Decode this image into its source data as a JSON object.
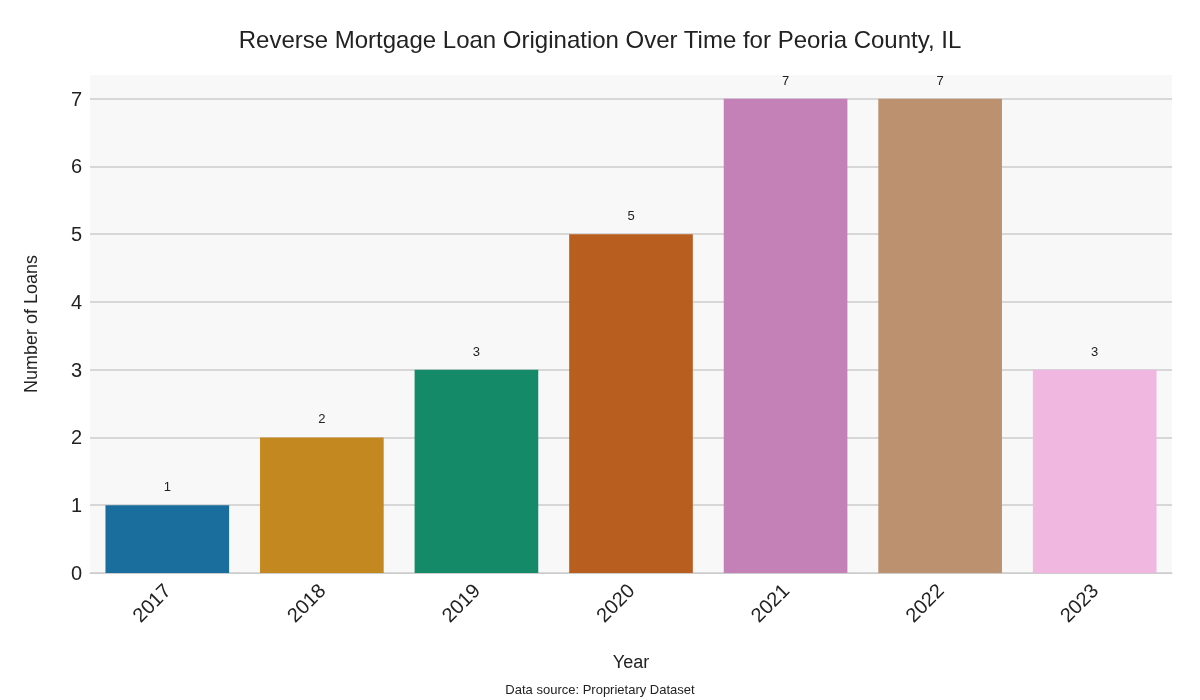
{
  "chart_data": {
    "type": "bar",
    "title": "Reverse Mortgage Loan Origination Over Time for Peoria County, IL",
    "xlabel": "Year",
    "ylabel": "Number of Loans",
    "categories": [
      "2017",
      "2018",
      "2019",
      "2020",
      "2021",
      "2022",
      "2023"
    ],
    "values": [
      1,
      2,
      3,
      5,
      7,
      7,
      3
    ],
    "colors": [
      "#1a6e9e",
      "#c38820",
      "#158a68",
      "#b85f1f",
      "#c481b7",
      "#bc9170",
      "#f0b8e0"
    ],
    "ylim": [
      0,
      7.35
    ],
    "yticks": [
      0,
      1,
      2,
      3,
      4,
      5,
      6,
      7
    ],
    "grid": "y",
    "data_labels": true,
    "annotations": [
      "Data source: Proprietary Dataset"
    ]
  }
}
